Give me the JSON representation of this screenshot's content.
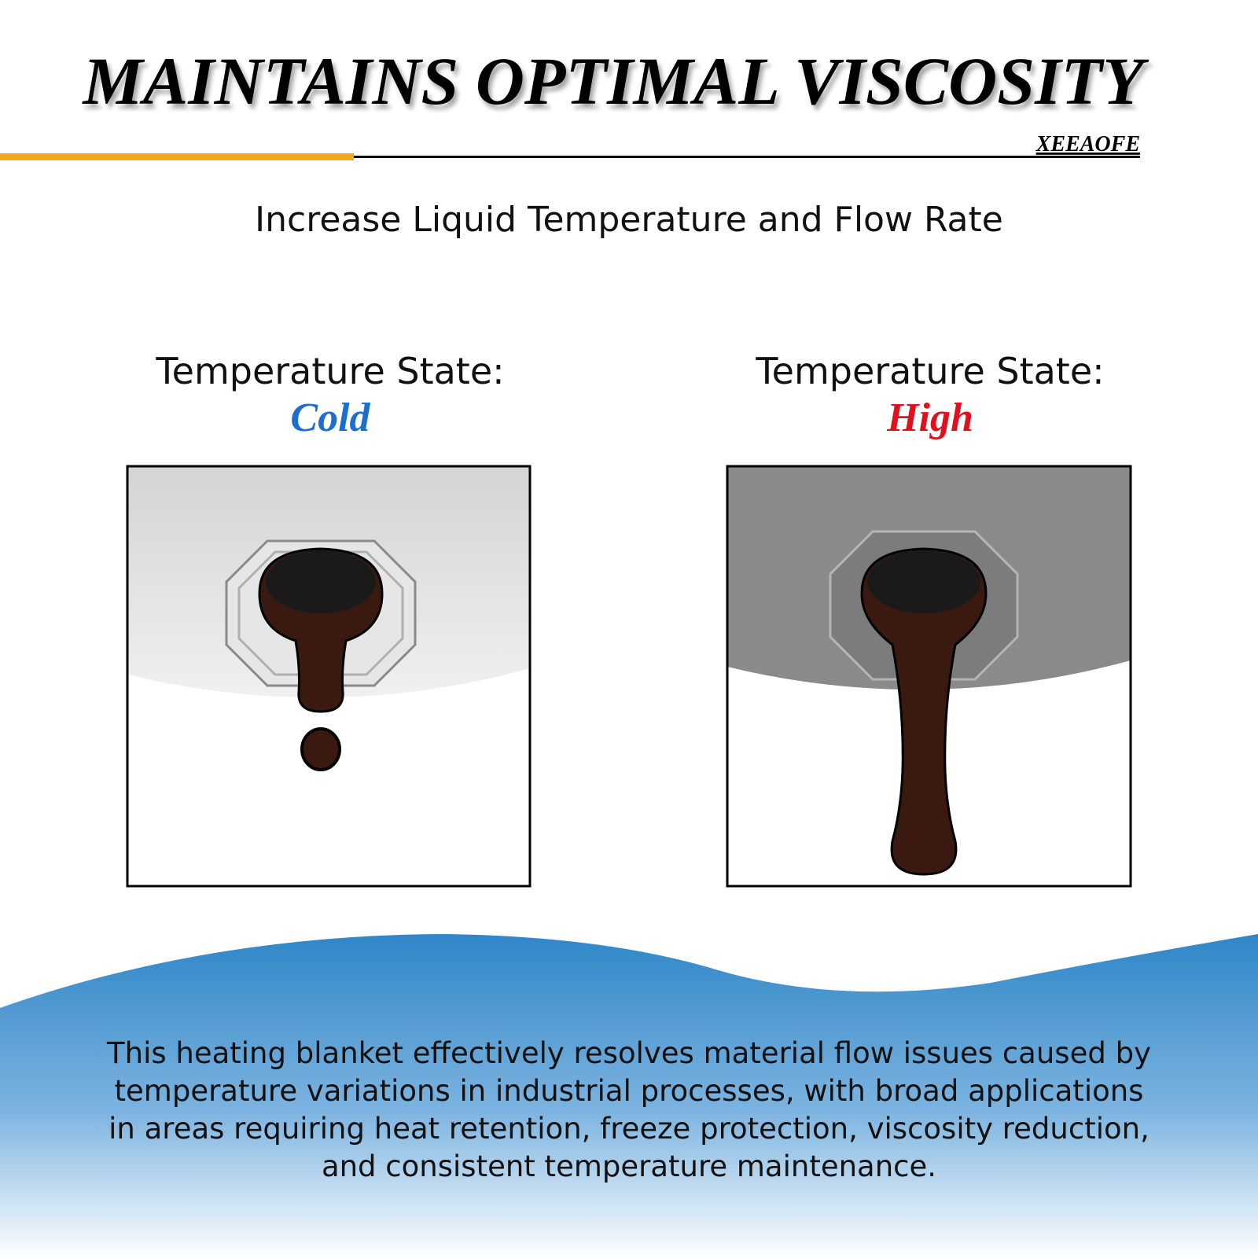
{
  "header": {
    "title": "MAINTAINS OPTIMAL VISCOSITY",
    "brand": "XEEAOFE"
  },
  "subtitle": "Increase Liquid Temperature and Flow Rate",
  "panels": [
    {
      "label": "Temperature State:",
      "state": "Cold"
    },
    {
      "label": "Temperature State:",
      "state": "High"
    }
  ],
  "footer": {
    "lines": [
      "This heating blanket effectively resolves material flow issues caused by",
      "temperature variations in industrial processes, with broad applications",
      "in areas requiring heat retention, freeze protection, viscosity reduction,",
      "and consistent temperature maintenance."
    ]
  }
}
